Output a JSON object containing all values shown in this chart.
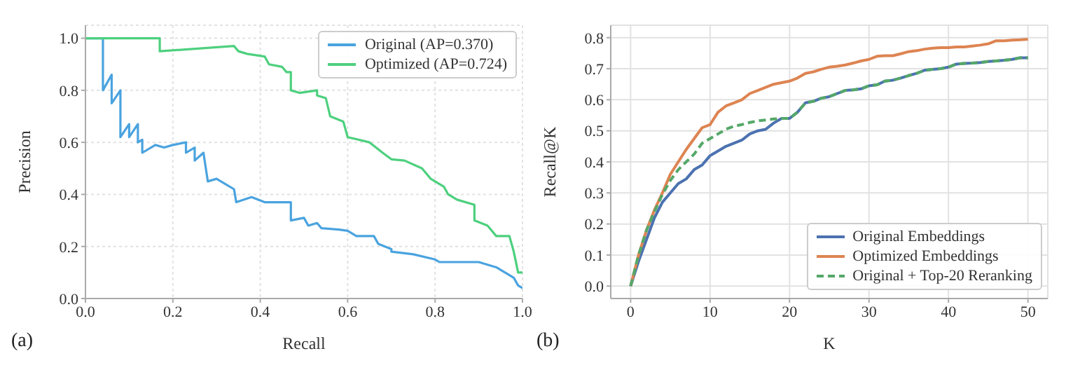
{
  "chart_data": [
    {
      "type": "line",
      "xlabel": "Recall",
      "ylabel": "Precision",
      "annotations": [
        "(a)"
      ],
      "xlim": [
        0,
        1
      ],
      "ylim": [
        0,
        1.05
      ],
      "xticks": [
        {
          "value": 0,
          "label": "0.0"
        },
        {
          "value": 0.2,
          "label": "0.2"
        },
        {
          "value": 0.4,
          "label": "0.4"
        },
        {
          "value": 0.6,
          "label": "0.6"
        },
        {
          "value": 0.8,
          "label": "0.8"
        },
        {
          "value": 1,
          "label": "1.0"
        }
      ],
      "yticks": [
        {
          "value": 0,
          "label": "0.0"
        },
        {
          "value": 0.2,
          "label": "0.2"
        },
        {
          "value": 0.4,
          "label": "0.4"
        },
        {
          "value": 0.6,
          "label": "0.6"
        },
        {
          "value": 0.8,
          "label": "0.8"
        },
        {
          "value": 1,
          "label": "1.0"
        }
      ],
      "grid": true,
      "legend": "top right",
      "marker": "none",
      "series": [
        {
          "name": "Original (AP=0.370)",
          "color": "#4aa3df",
          "x": [
            0,
            0.04,
            0.04,
            0.06,
            0.06,
            0.08,
            0.08,
            0.1,
            0.1,
            0.12,
            0.12,
            0.13,
            0.13,
            0.16,
            0.18,
            0.2,
            0.23,
            0.23,
            0.25,
            0.25,
            0.27,
            0.28,
            0.3,
            0.32,
            0.34,
            0.345,
            0.38,
            0.41,
            0.43,
            0.47,
            0.47,
            0.5,
            0.51,
            0.53,
            0.54,
            0.58,
            0.6,
            0.62,
            0.66,
            0.67,
            0.7,
            0.7,
            0.75,
            0.8,
            0.81,
            0.9,
            0.94,
            0.96,
            0.98,
            0.99,
            1.0
          ],
          "values": [
            1,
            1,
            0.8,
            0.86,
            0.75,
            0.8,
            0.62,
            0.67,
            0.62,
            0.67,
            0.6,
            0.61,
            0.56,
            0.59,
            0.58,
            0.59,
            0.6,
            0.56,
            0.58,
            0.53,
            0.56,
            0.45,
            0.46,
            0.44,
            0.42,
            0.37,
            0.39,
            0.37,
            0.37,
            0.37,
            0.3,
            0.31,
            0.28,
            0.29,
            0.27,
            0.265,
            0.26,
            0.24,
            0.24,
            0.21,
            0.19,
            0.18,
            0.17,
            0.15,
            0.14,
            0.14,
            0.12,
            0.1,
            0.08,
            0.05,
            0.04
          ]
        },
        {
          "name": "Optimized (AP=0.724)",
          "color": "#4dd07e",
          "x": [
            0,
            0.17,
            0.17,
            0.34,
            0.35,
            0.37,
            0.41,
            0.42,
            0.45,
            0.46,
            0.47,
            0.47,
            0.49,
            0.53,
            0.53,
            0.55,
            0.56,
            0.59,
            0.6,
            0.65,
            0.68,
            0.7,
            0.73,
            0.77,
            0.79,
            0.82,
            0.83,
            0.85,
            0.89,
            0.89,
            0.92,
            0.94,
            0.97,
            0.98,
            0.99,
            1.0
          ],
          "values": [
            1,
            1,
            0.95,
            0.97,
            0.95,
            0.94,
            0.93,
            0.9,
            0.89,
            0.87,
            0.87,
            0.8,
            0.79,
            0.8,
            0.78,
            0.77,
            0.7,
            0.68,
            0.62,
            0.6,
            0.56,
            0.535,
            0.53,
            0.5,
            0.46,
            0.43,
            0.4,
            0.38,
            0.36,
            0.3,
            0.28,
            0.24,
            0.24,
            0.18,
            0.1,
            0.1
          ]
        }
      ]
    },
    {
      "type": "line",
      "xlabel": "K",
      "ylabel": "Recall@K",
      "annotations": [
        "(b)"
      ],
      "xlim": [
        -2.5,
        52.5
      ],
      "ylim": [
        -0.04,
        0.84
      ],
      "xticks": [
        0,
        10,
        20,
        30,
        40,
        50
      ],
      "yticks": [
        {
          "value": 0,
          "label": "0.0"
        },
        0.1,
        0.2,
        0.3,
        0.4,
        0.5,
        0.6,
        0.7,
        0.8
      ],
      "grid": true,
      "legend": "bottom right",
      "marker": "none",
      "x": [
        0,
        1,
        2,
        3,
        4,
        5,
        6,
        7,
        8,
        9,
        10,
        11,
        12,
        13,
        14,
        15,
        16,
        17,
        18,
        19,
        20,
        21,
        22,
        23,
        24,
        25,
        26,
        27,
        28,
        29,
        30,
        31,
        32,
        33,
        34,
        35,
        36,
        37,
        38,
        39,
        40,
        41,
        42,
        43,
        44,
        45,
        46,
        47,
        48,
        49,
        50
      ],
      "series": [
        {
          "name": "Original Embeddings",
          "color": "#4c72b0",
          "values": [
            0,
            0.08,
            0.15,
            0.22,
            0.27,
            0.3,
            0.33,
            0.345,
            0.375,
            0.39,
            0.42,
            0.435,
            0.45,
            0.46,
            0.47,
            0.49,
            0.5,
            0.505,
            0.525,
            0.54,
            0.54,
            0.56,
            0.59,
            0.595,
            0.605,
            0.61,
            0.62,
            0.63,
            0.632,
            0.635,
            0.645,
            0.648,
            0.66,
            0.663,
            0.67,
            0.678,
            0.685,
            0.695,
            0.698,
            0.7,
            0.705,
            0.715,
            0.717,
            0.718,
            0.72,
            0.723,
            0.725,
            0.727,
            0.73,
            0.735,
            0.735
          ]
        },
        {
          "name": "Optimized Embeddings",
          "color": "#dd8452",
          "values": [
            0,
            0.1,
            0.18,
            0.245,
            0.3,
            0.36,
            0.4,
            0.44,
            0.475,
            0.51,
            0.52,
            0.56,
            0.58,
            0.59,
            0.6,
            0.62,
            0.63,
            0.64,
            0.65,
            0.655,
            0.66,
            0.67,
            0.685,
            0.69,
            0.698,
            0.705,
            0.708,
            0.712,
            0.718,
            0.725,
            0.73,
            0.74,
            0.742,
            0.742,
            0.748,
            0.755,
            0.758,
            0.763,
            0.766,
            0.768,
            0.768,
            0.77,
            0.77,
            0.773,
            0.776,
            0.78,
            0.79,
            0.79,
            0.792,
            0.793,
            0.795
          ]
        },
        {
          "name": "Original + Top-20 Reranking",
          "color": "#55a868",
          "line_style": "dashed",
          "values": [
            0,
            0.1,
            0.18,
            0.24,
            0.295,
            0.34,
            0.375,
            0.4,
            0.425,
            0.46,
            0.475,
            0.49,
            0.505,
            0.515,
            0.52,
            0.527,
            0.532,
            0.535,
            0.538,
            0.54,
            0.54,
            0.56,
            0.59,
            0.595,
            0.605,
            0.61,
            0.62,
            0.63,
            0.632,
            0.635,
            0.645,
            0.648,
            0.66,
            0.663,
            0.67,
            0.678,
            0.685,
            0.695,
            0.698,
            0.7,
            0.705,
            0.715,
            0.717,
            0.718,
            0.72,
            0.723,
            0.725,
            0.727,
            0.73,
            0.735,
            0.735
          ]
        }
      ]
    }
  ]
}
